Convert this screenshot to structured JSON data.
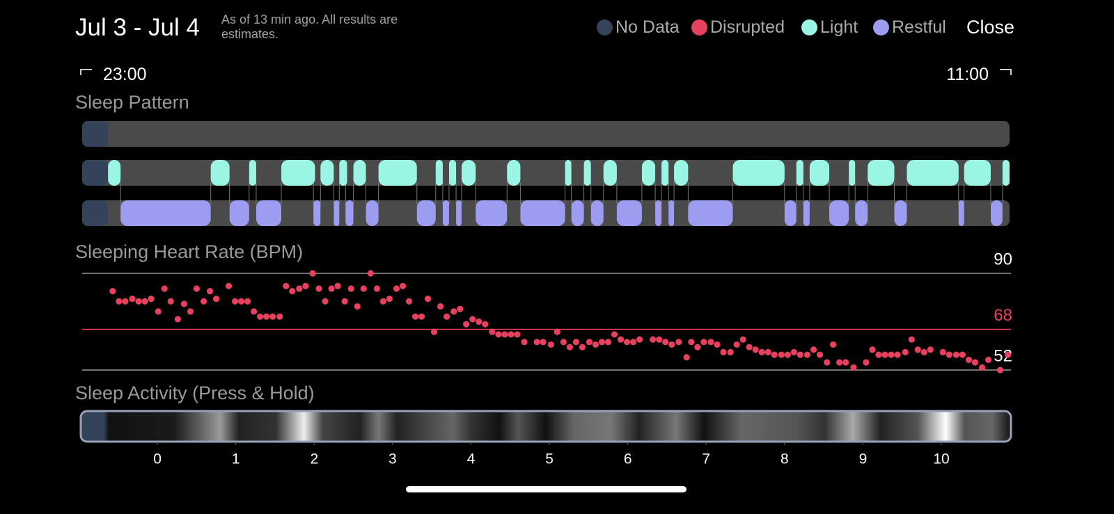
{
  "header": {
    "title": "Jul 3 - Jul 4",
    "note": "As of 13 min ago. All results are estimates.",
    "close": "Close"
  },
  "legend": [
    {
      "name": "No Data",
      "color": "#34435a"
    },
    {
      "name": "Disrupted",
      "color": "#e8405f"
    },
    {
      "name": "Light",
      "color": "#9af5e4"
    },
    {
      "name": "Restful",
      "color": "#9c9cf0"
    }
  ],
  "time_range": {
    "start": "23:00",
    "end": "11:00"
  },
  "sleep_pattern": {
    "title": "Sleep Pattern",
    "xlim": [
      -0.96,
      10.87
    ],
    "no_data": [
      [
        -0.96,
        -0.63
      ]
    ],
    "light": [
      [
        -0.63,
        -0.47
      ],
      [
        0.68,
        0.92
      ],
      [
        1.17,
        1.26
      ],
      [
        1.58,
        2.01
      ],
      [
        2.08,
        2.25
      ],
      [
        2.32,
        2.42
      ],
      [
        2.5,
        2.66
      ],
      [
        2.82,
        3.31
      ],
      [
        3.55,
        3.64
      ],
      [
        3.72,
        3.81
      ],
      [
        3.88,
        4.06
      ],
      [
        4.46,
        4.63
      ],
      [
        5.2,
        5.28
      ],
      [
        5.44,
        5.53
      ],
      [
        5.69,
        5.86
      ],
      [
        6.18,
        6.35
      ],
      [
        6.43,
        6.52
      ],
      [
        6.59,
        6.77
      ],
      [
        7.34,
        8.0
      ],
      [
        8.15,
        8.24
      ],
      [
        8.32,
        8.57
      ],
      [
        8.82,
        8.9
      ],
      [
        9.06,
        9.4
      ],
      [
        9.56,
        10.22
      ],
      [
        10.29,
        10.63
      ],
      [
        10.78,
        10.87
      ]
    ],
    "restful": [
      [
        -0.47,
        0.68
      ],
      [
        0.92,
        1.17
      ],
      [
        1.26,
        1.58
      ],
      [
        1.99,
        2.08
      ],
      [
        2.25,
        2.32
      ],
      [
        2.4,
        2.5
      ],
      [
        2.66,
        2.82
      ],
      [
        3.31,
        3.55
      ],
      [
        3.64,
        3.72
      ],
      [
        3.81,
        3.88
      ],
      [
        4.06,
        4.46
      ],
      [
        4.63,
        5.2
      ],
      [
        5.28,
        5.44
      ],
      [
        5.53,
        5.69
      ],
      [
        5.86,
        6.18
      ],
      [
        6.35,
        6.43
      ],
      [
        6.52,
        6.59
      ],
      [
        6.77,
        7.34
      ],
      [
        8.0,
        8.15
      ],
      [
        8.24,
        8.32
      ],
      [
        8.57,
        8.82
      ],
      [
        8.9,
        9.06
      ],
      [
        9.4,
        9.56
      ],
      [
        10.22,
        10.29
      ],
      [
        10.63,
        10.78
      ]
    ]
  },
  "heart_rate": {
    "title": "Sleeping Heart Rate (BPM)",
    "type": "scatter",
    "color": "#e8405f",
    "xlim": [
      -0.96,
      10.87
    ],
    "ylim": [
      52,
      90
    ],
    "yticks": [
      90,
      68,
      52
    ],
    "average": 68,
    "x": [
      -0.57,
      -0.49,
      -0.41,
      -0.32,
      -0.24,
      -0.16,
      -0.08,
      0.01,
      0.09,
      0.17,
      0.26,
      0.34,
      0.42,
      0.5,
      0.59,
      0.67,
      0.75,
      0.91,
      0.99,
      1.07,
      1.15,
      1.23,
      1.31,
      1.39,
      1.47,
      1.56,
      1.64,
      1.72,
      1.81,
      1.89,
      1.98,
      2.06,
      2.14,
      2.22,
      2.3,
      2.39,
      2.47,
      2.55,
      2.63,
      2.72,
      2.8,
      2.88,
      2.96,
      3.05,
      3.13,
      3.21,
      3.29,
      3.37,
      3.45,
      3.53,
      3.61,
      3.69,
      3.78,
      3.86,
      3.94,
      4.02,
      4.1,
      4.18,
      4.27,
      4.35,
      4.43,
      4.51,
      4.59,
      4.68,
      4.84,
      4.92,
      5.02,
      5.1,
      5.18,
      5.26,
      5.34,
      5.42,
      5.51,
      5.59,
      5.67,
      5.75,
      5.83,
      5.91,
      5.99,
      6.07,
      6.15,
      6.32,
      6.4,
      6.48,
      6.56,
      6.65,
      6.75,
      6.81,
      6.89,
      6.97,
      7.06,
      7.14,
      7.22,
      7.31,
      7.39,
      7.47,
      7.55,
      7.63,
      7.71,
      7.79,
      7.87,
      7.96,
      8.04,
      8.12,
      8.2,
      8.29,
      8.37,
      8.45,
      8.54,
      8.62,
      8.7,
      8.78,
      8.88,
      9.04,
      9.12,
      9.2,
      9.28,
      9.36,
      9.44,
      9.54,
      9.62,
      9.7,
      9.78,
      9.86,
      10.02,
      10.1,
      10.19,
      10.27,
      10.35,
      10.43,
      10.52,
      10.6,
      10.75,
      10.85
    ],
    "values": [
      83,
      79,
      79,
      80,
      79,
      79,
      80,
      75,
      84,
      79,
      72,
      78,
      75,
      84,
      79,
      83,
      80,
      85,
      79,
      79,
      79,
      75,
      73,
      73,
      73,
      73,
      85,
      83,
      84,
      85,
      90,
      84,
      79,
      84,
      85,
      79,
      84,
      77,
      84,
      90,
      84,
      79,
      80,
      84,
      85,
      79,
      73,
      73,
      80,
      67,
      77,
      73,
      75,
      76,
      70,
      72,
      71,
      70,
      67,
      66,
      66,
      66,
      66,
      63,
      63,
      63,
      62,
      67,
      63,
      61,
      63,
      61,
      63,
      62,
      63,
      63,
      66,
      64,
      63,
      63,
      64,
      64,
      64,
      63,
      62,
      63,
      57,
      63,
      61,
      63,
      63,
      62,
      59,
      59,
      62,
      64,
      61,
      60,
      59,
      59,
      58,
      58,
      58,
      59,
      58,
      58,
      60,
      58,
      55,
      62,
      55,
      55,
      53,
      55,
      60,
      58,
      58,
      58,
      58,
      59,
      64,
      60,
      59,
      60,
      59,
      58,
      58,
      58,
      56,
      55,
      53,
      56,
      52,
      58
    ]
  },
  "sleep_activity": {
    "title": "Sleep Activity (Press & Hold)",
    "xlim": [
      -0.96,
      10.87
    ],
    "xticks": [
      0,
      1,
      2,
      3,
      4,
      5,
      6,
      7,
      8,
      9,
      10
    ]
  }
}
